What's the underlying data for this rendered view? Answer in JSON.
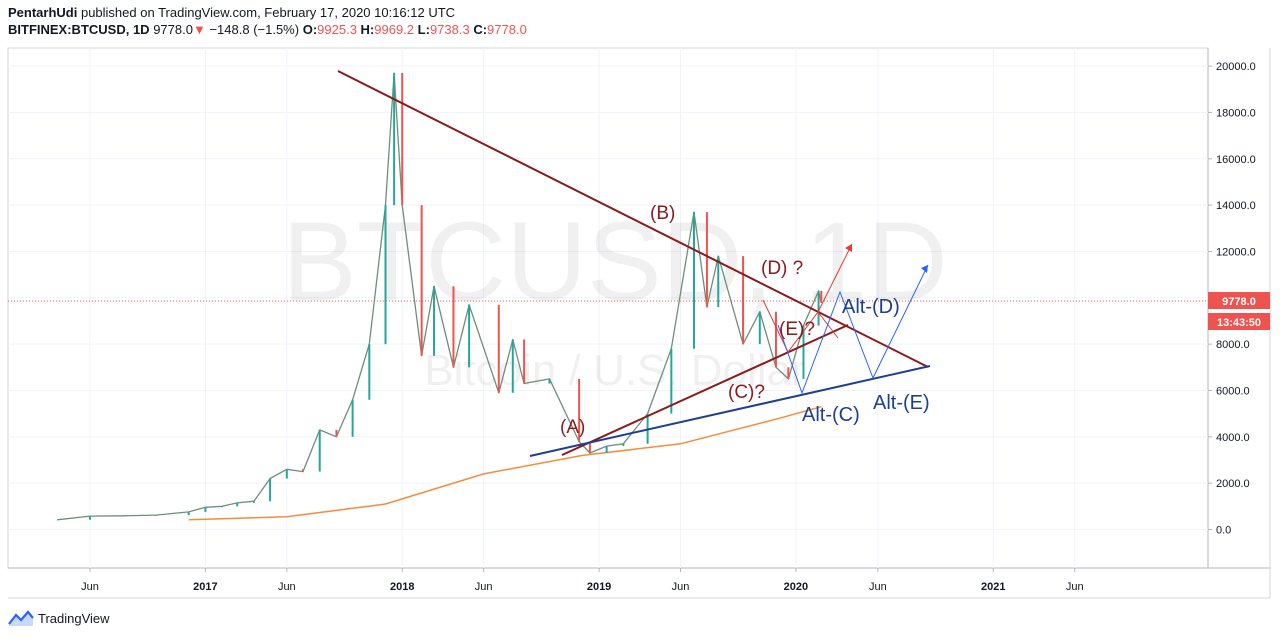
{
  "header": {
    "author": "PentarhUdi",
    "published": "published on TradingView.com, February 17, 2020 10:16:12 UTC",
    "symbol": "BITFINEX:BTCUSD, 1D",
    "last": "9778.0",
    "change_arrow": "▼",
    "change": "−148.8 (−1.5%)",
    "open_label": "O:",
    "open": "9925.3",
    "high_label": "H:",
    "high": "9969.2",
    "low_label": "L:",
    "low": "9738.3",
    "close_label": "C:",
    "close": "9778.0"
  },
  "watermark": {
    "symbol": "BTCUSD, 1D",
    "name": "Bitcoin / U.S. Dollar"
  },
  "badges": {
    "price": "9778.0",
    "countdown": "13:43:50"
  },
  "footer": {
    "brand": "TradingView"
  },
  "colors": {
    "candle_up": "#26a69a",
    "candle_down": "#ef5350",
    "price_line": "#ef5350",
    "ma_line": "#f48c3a",
    "triangle_line": "#8b1a1a",
    "support_line": "#1c3f94",
    "red_projection": "#e53935",
    "blue_projection": "#2962ff",
    "label_red": "#8b1a1a",
    "label_blue": "#1c3f94"
  },
  "chart_data": {
    "type": "line",
    "series": [
      {
        "name": "",
        "x": [
          "2016-04-01",
          "2016-06-01",
          "2016-08-01",
          "2016-10-01",
          "2016-12-01",
          "2017-01-01",
          "2017-02-01",
          "2017-03-01",
          "2017-04-01",
          "2017-05-01",
          "2017-06-01",
          "2017-07-01",
          "2017-08-01",
          "2017-09-01",
          "2017-10-01",
          "2017-11-01",
          "2017-12-01",
          "2017-12-17",
          "2018-01-01",
          "2018-02-06",
          "2018-03-01",
          "2018-04-06",
          "2018-05-05",
          "2018-06-29",
          "2018-07-25",
          "2018-08-15",
          "2018-10-01",
          "2018-11-25",
          "2018-12-15",
          "2019-01-15",
          "2019-02-15",
          "2019-04-01",
          "2019-05-15",
          "2019-06-26",
          "2019-07-20",
          "2019-08-10",
          "2019-09-25",
          "2019-10-26",
          "2019-11-25",
          "2019-12-18",
          "2020-01-15",
          "2020-02-12",
          "2020-02-17"
        ],
        "values": [
          420,
          580,
          590,
          620,
          760,
          960,
          1000,
          1150,
          1220,
          2200,
          2600,
          2500,
          4300,
          4000,
          5600,
          8000,
          14000,
          19700,
          14000,
          7500,
          10500,
          7000,
          9700,
          5900,
          8200,
          6300,
          6500,
          3800,
          3300,
          3600,
          3700,
          5000,
          7800,
          13700,
          9600,
          11800,
          8000,
          9400,
          7000,
          6500,
          8800,
          10300,
          9778
        ]
      },
      {
        "name": "",
        "x": [
          "2016-12-01",
          "2017-06-01",
          "2017-12-01",
          "2018-06-01",
          "2018-12-01",
          "2019-06-01",
          "2019-12-01",
          "2020-02-17"
        ],
        "values": [
          420,
          550,
          1100,
          2400,
          3200,
          3700,
          4800,
          5300
        ]
      }
    ],
    "ylim": [
      -1000,
      21000
    ],
    "yticks": [
      "20000.0",
      "18000.0",
      "16000.0",
      "14000.0",
      "12000.0",
      "10000.0",
      "8000.0",
      "6000.0",
      "4000.0",
      "2000.0",
      "0.0"
    ],
    "xticks": [
      "Jun",
      "2017",
      "Jun",
      "2018",
      "Jun",
      "2019",
      "Jun",
      "2020",
      "Jun",
      "2021",
      "Jun"
    ],
    "annotations": {
      "wave_labels": [
        "(A)",
        "(B)",
        "(C)?",
        "(D) ?",
        "(E)?"
      ],
      "alt_labels": [
        "Alt-(C)",
        "Alt-(D)",
        "Alt-(E)"
      ]
    },
    "grid": true
  }
}
